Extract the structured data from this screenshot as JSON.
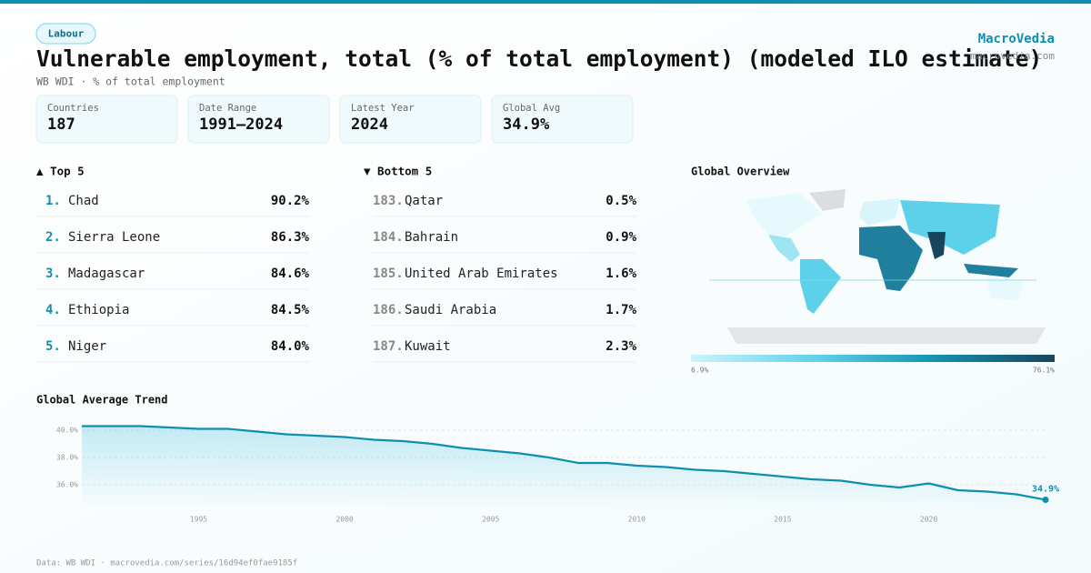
{
  "tag": "Labour",
  "title": "Vulnerable employment, total (% of total employment) (modeled ILO estimate)",
  "subtitle": "WB WDI · % of total employment",
  "brand": {
    "name": "MacroVedia",
    "url": "macrovedia.com"
  },
  "stats": [
    {
      "label": "Countries",
      "value": "187"
    },
    {
      "label": "Date Range",
      "value": "1991–2024"
    },
    {
      "label": "Latest Year",
      "value": "2024"
    },
    {
      "label": "Global Avg",
      "value": "34.9%"
    }
  ],
  "top5": {
    "title": "▲ Top 5",
    "rows": [
      {
        "rank": "1.",
        "name": "Chad",
        "value": "90.2%"
      },
      {
        "rank": "2.",
        "name": "Sierra Leone",
        "value": "86.3%"
      },
      {
        "rank": "3.",
        "name": "Madagascar",
        "value": "84.6%"
      },
      {
        "rank": "4.",
        "name": "Ethiopia",
        "value": "84.5%"
      },
      {
        "rank": "5.",
        "name": "Niger",
        "value": "84.0%"
      }
    ]
  },
  "bottom5": {
    "title": "▼ Bottom 5",
    "rows": [
      {
        "rank": "183.",
        "name": "Qatar",
        "value": "0.5%"
      },
      {
        "rank": "184.",
        "name": "Bahrain",
        "value": "0.9%"
      },
      {
        "rank": "185.",
        "name": "United Arab Emirates",
        "value": "1.6%"
      },
      {
        "rank": "186.",
        "name": "Saudi Arabia",
        "value": "1.7%"
      },
      {
        "rank": "187.",
        "name": "Kuwait",
        "value": "2.3%"
      }
    ]
  },
  "map": {
    "title": "Global Overview",
    "legend_min": "6.9%",
    "legend_max": "76.1%"
  },
  "chart_data": {
    "type": "line",
    "title": "Global Average Trend",
    "x": [
      1991,
      1992,
      1993,
      1994,
      1995,
      1996,
      1997,
      1998,
      1999,
      2000,
      2001,
      2002,
      2003,
      2004,
      2005,
      2006,
      2007,
      2008,
      2009,
      2010,
      2011,
      2012,
      2013,
      2014,
      2015,
      2016,
      2017,
      2018,
      2019,
      2020,
      2021,
      2022,
      2023,
      2024
    ],
    "values": [
      40.3,
      40.3,
      40.3,
      40.2,
      40.1,
      40.1,
      39.9,
      39.7,
      39.6,
      39.5,
      39.3,
      39.2,
      39.0,
      38.7,
      38.5,
      38.3,
      38.0,
      37.6,
      37.6,
      37.4,
      37.3,
      37.1,
      37.0,
      36.8,
      36.6,
      36.4,
      36.3,
      36.0,
      35.8,
      36.1,
      35.6,
      35.5,
      35.3,
      34.9
    ],
    "value_labels": [
      null,
      null,
      null,
      null,
      null,
      null,
      null,
      null,
      null,
      null,
      null,
      null,
      null,
      null,
      null,
      null,
      null,
      null,
      null,
      null,
      null,
      null,
      null,
      null,
      null,
      null,
      null,
      null,
      null,
      null,
      null,
      null,
      null,
      "34.9%"
    ],
    "color": "#0e8fb0",
    "xlim": [
      1991,
      2024
    ],
    "xticks": [
      1995,
      2000,
      2005,
      2010,
      2015,
      2020
    ],
    "ylim": [
      34.2,
      40.7
    ],
    "yticks": [
      {
        "value": 36,
        "label": "36.0%"
      },
      {
        "value": 38,
        "label": "38.0%"
      },
      {
        "value": 40,
        "label": "40.0%"
      }
    ],
    "grid": true
  },
  "footer": "Data: WB WDI · macrovedia.com/series/16d94ef0fae9185f"
}
